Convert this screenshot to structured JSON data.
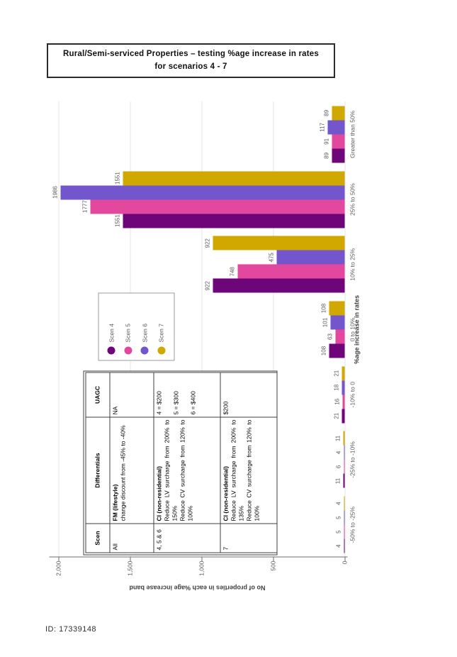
{
  "page": {
    "title": "Rural/Semi-serviced Properties – testing %age increase in rates for scenarios 4 - 7",
    "footer_id": "ID: 17339148"
  },
  "chart_data": {
    "type": "bar",
    "title": "Rural/Semi-serviced Properties – testing %age increase in rates for scenarios 4 - 7",
    "xlabel": "%age increase in rates",
    "ylabel": "No of properties in each %age increase band",
    "categories": [
      "-50% to -25%",
      "-25% to -10%",
      "-10% to 0",
      "0 to 10%",
      "10% to 25%",
      "25% to 50%",
      "Greater than 50%"
    ],
    "series": [
      {
        "name": "Scen 4",
        "color": "#6E0578",
        "values": [
          4,
          11,
          21,
          108,
          922,
          1551,
          89
        ]
      },
      {
        "name": "Scen 5",
        "color": "#E2499E",
        "values": [
          5,
          6,
          16,
          63,
          748,
          1777,
          91
        ]
      },
      {
        "name": "Scen 6",
        "color": "#7456CC",
        "values": [
          5,
          4,
          18,
          101,
          475,
          1986,
          117
        ]
      },
      {
        "name": "Scen 7",
        "color": "#D0A800",
        "values": [
          4,
          11,
          21,
          108,
          922,
          1551,
          89
        ]
      }
    ],
    "ylim": [
      0,
      2000
    ],
    "yticks": [
      0,
      500,
      1000,
      1500,
      2000
    ],
    "ytick_labels": [
      "0",
      "500",
      "1,000",
      "1,500",
      "2,000"
    ],
    "grid": "dotted-horizontal",
    "data_labels": true,
    "legend_position": "inside-plot-upper-middle",
    "orientation_on_page": "chart rotated 90 degrees counter-clockwise on portrait page"
  },
  "table": {
    "headers": [
      "Scen",
      "Differentials",
      "UAGC"
    ],
    "rows": [
      {
        "scen": "All",
        "diff_bold": "FM (lifestyle)",
        "diff_lines": [
          "change discount from -45% to -40%"
        ],
        "uagc": [
          "NA"
        ]
      },
      {
        "scen": "4, 5 & 6",
        "diff_bold": "CI (non-residential)",
        "diff_lines": [
          "Reduce LV surcharge from 200% to 150%",
          "Reduce CV surcharge from 120% to 100%"
        ],
        "uagc": [
          "4 = $200",
          "5 = $300",
          "6 = $400"
        ]
      },
      {
        "scen": "7",
        "diff_bold": "CI (non-residential)",
        "diff_lines": [
          "Reduce LV surcharge from 200% to 135%",
          "Reduce CV surcharge from 120% to 100%"
        ],
        "uagc": [
          "$200"
        ]
      }
    ]
  }
}
